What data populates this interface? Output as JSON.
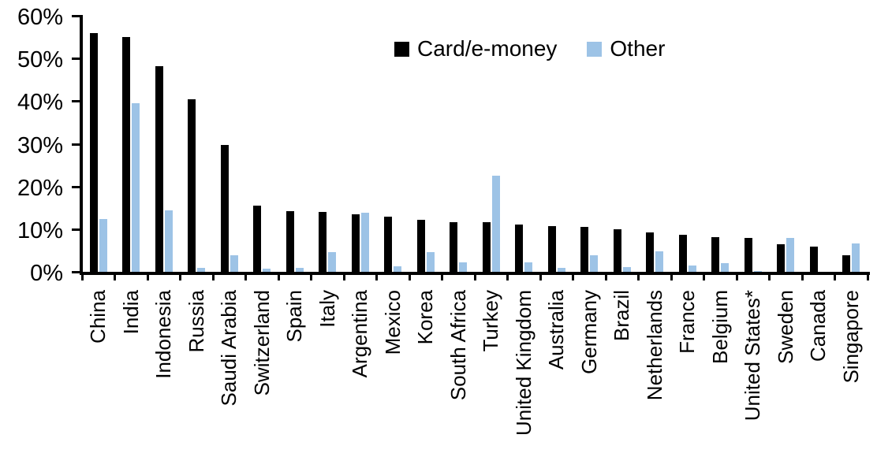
{
  "chart_data": {
    "type": "bar",
    "title": "",
    "xlabel": "",
    "ylabel": "",
    "ylim": [
      0,
      60
    ],
    "ytick_step": 10,
    "yticks": [
      "0%",
      "10%",
      "20%",
      "30%",
      "40%",
      "50%",
      "60%"
    ],
    "grid": false,
    "legend_position": "top-center",
    "categories": [
      "China",
      "India",
      "Indonesia",
      "Russia",
      "Saudi Arabia",
      "Switzerland",
      "Spain",
      "Italy",
      "Argentina",
      "Mexico",
      "Korea",
      "South Africa",
      "Turkey",
      "United Kingdom",
      "Australia",
      "Germany",
      "Brazil",
      "Netherlands",
      "France",
      "Belgium",
      "United States*",
      "Sweden",
      "Canada",
      "Singapore"
    ],
    "series": [
      {
        "name": "Card/e-money",
        "color": "#000000",
        "values": [
          56,
          55,
          48.2,
          40.4,
          29.8,
          15.6,
          14.2,
          14.1,
          13.4,
          13,
          12.2,
          11.7,
          11.6,
          11.1,
          10.7,
          10.5,
          10,
          9.3,
          8.7,
          8.2,
          7.9,
          6.5,
          6,
          3.9
        ]
      },
      {
        "name": "Other",
        "color": "#9DC3E6",
        "values": [
          12.3,
          39.6,
          14.5,
          1,
          3.9,
          0.8,
          1,
          4.6,
          13.8,
          1.3,
          4.6,
          2.3,
          22.5,
          2.2,
          1,
          3.9,
          1.2,
          4.8,
          1.5,
          2,
          0.2,
          8,
          0,
          6.6
        ]
      }
    ]
  },
  "colors": {
    "background": "#FFFFFF",
    "axis": "#000000",
    "text": "#000000",
    "bar_primary": "#000000",
    "bar_secondary": "#9DC3E6"
  }
}
